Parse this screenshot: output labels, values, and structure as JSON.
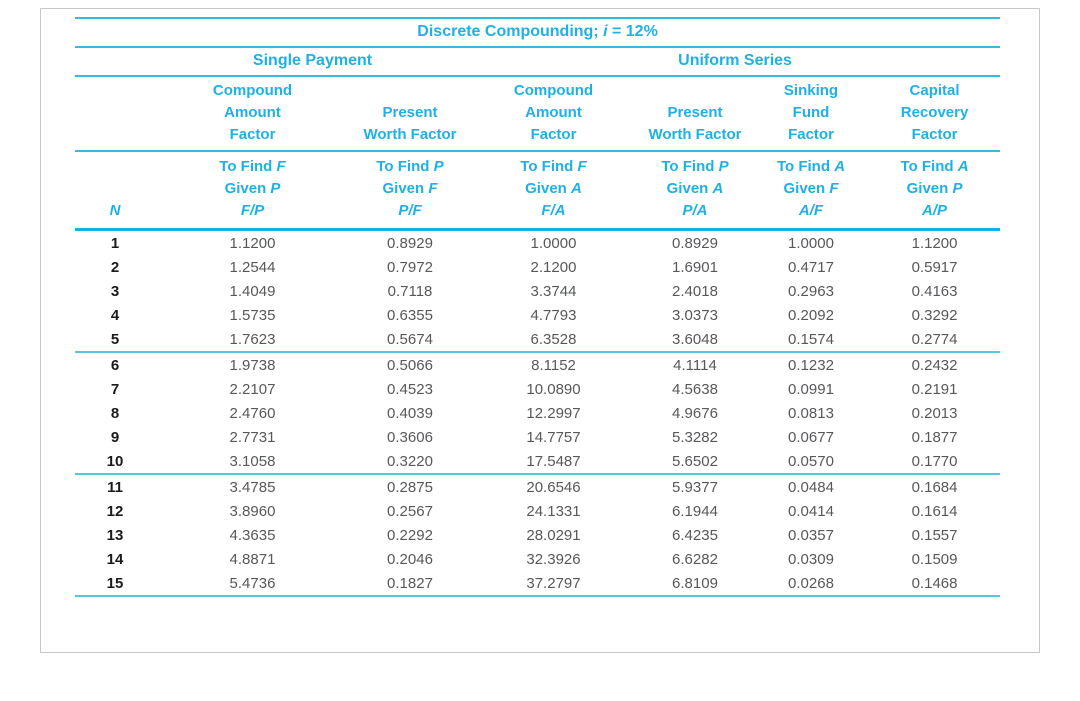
{
  "colors": {
    "header_text": "#1fb1e3",
    "rule_thin": "#3ab9dc",
    "rule_thick": "#14b2e0",
    "rule_group": "#5ac6dc",
    "data_text": "#57585a",
    "n_text": "#1a1b1d",
    "card_border": "#c6c8ca"
  },
  "table": {
    "title": {
      "prefix": "Discrete Compounding; ",
      "var": "i",
      "suffix": " = 12%"
    },
    "groups": [
      {
        "label": "Single Payment"
      },
      {
        "label": "Uniform Series"
      }
    ],
    "labels": {
      "to_find": "To Find",
      "given": "Given"
    },
    "n_header": "N",
    "columns": [
      {
        "name_lines": [
          "Compound",
          "Amount",
          "Factor"
        ],
        "to_find": "F",
        "given": "P",
        "symbol": "F/P"
      },
      {
        "name_lines": [
          "Present",
          "Worth Factor"
        ],
        "to_find": "P",
        "given": "F",
        "symbol": "P/F"
      },
      {
        "name_lines": [
          "Compound",
          "Amount",
          "Factor"
        ],
        "to_find": "F",
        "given": "A",
        "symbol": "F/A"
      },
      {
        "name_lines": [
          "Present",
          "Worth Factor"
        ],
        "to_find": "P",
        "given": "A",
        "symbol": "P/A"
      },
      {
        "name_lines": [
          "Sinking",
          "Fund",
          "Factor"
        ],
        "to_find": "A",
        "given": "F",
        "symbol": "A/F"
      },
      {
        "name_lines": [
          "Capital",
          "Recovery",
          "Factor"
        ],
        "to_find": "A",
        "given": "P",
        "symbol": "A/P"
      }
    ],
    "rows": [
      {
        "n": "1",
        "values": [
          "1.1200",
          "0.8929",
          "1.0000",
          "0.8929",
          "1.0000",
          "1.1200"
        ]
      },
      {
        "n": "2",
        "values": [
          "1.2544",
          "0.7972",
          "2.1200",
          "1.6901",
          "0.4717",
          "0.5917"
        ]
      },
      {
        "n": "3",
        "values": [
          "1.4049",
          "0.7118",
          "3.3744",
          "2.4018",
          "0.2963",
          "0.4163"
        ]
      },
      {
        "n": "4",
        "values": [
          "1.5735",
          "0.6355",
          "4.7793",
          "3.0373",
          "0.2092",
          "0.3292"
        ]
      },
      {
        "n": "5",
        "values": [
          "1.7623",
          "0.5674",
          "6.3528",
          "3.6048",
          "0.1574",
          "0.2774"
        ],
        "group_end": true
      },
      {
        "n": "6",
        "values": [
          "1.9738",
          "0.5066",
          "8.1152",
          "4.1114",
          "0.1232",
          "0.2432"
        ]
      },
      {
        "n": "7",
        "values": [
          "2.2107",
          "0.4523",
          "10.0890",
          "4.5638",
          "0.0991",
          "0.2191"
        ]
      },
      {
        "n": "8",
        "values": [
          "2.4760",
          "0.4039",
          "12.2997",
          "4.9676",
          "0.0813",
          "0.2013"
        ]
      },
      {
        "n": "9",
        "values": [
          "2.7731",
          "0.3606",
          "14.7757",
          "5.3282",
          "0.0677",
          "0.1877"
        ]
      },
      {
        "n": "10",
        "values": [
          "3.1058",
          "0.3220",
          "17.5487",
          "5.6502",
          "0.0570",
          "0.1770"
        ],
        "group_end": true
      },
      {
        "n": "11",
        "values": [
          "3.4785",
          "0.2875",
          "20.6546",
          "5.9377",
          "0.0484",
          "0.1684"
        ]
      },
      {
        "n": "12",
        "values": [
          "3.8960",
          "0.2567",
          "24.1331",
          "6.1944",
          "0.0414",
          "0.1614"
        ]
      },
      {
        "n": "13",
        "values": [
          "4.3635",
          "0.2292",
          "28.0291",
          "6.4235",
          "0.0357",
          "0.1557"
        ]
      },
      {
        "n": "14",
        "values": [
          "4.8871",
          "0.2046",
          "32.3926",
          "6.6282",
          "0.0309",
          "0.1509"
        ]
      },
      {
        "n": "15",
        "values": [
          "5.4736",
          "0.1827",
          "37.2797",
          "6.8109",
          "0.0268",
          "0.1468"
        ],
        "group_end": true
      }
    ]
  }
}
